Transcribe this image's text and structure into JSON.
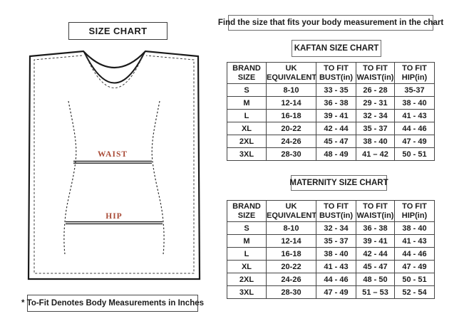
{
  "page": {
    "title_box": "SIZE CHART",
    "instruction": "Find the size that fits your body measurement in the chart",
    "footnote": "* To-Fit Denotes Body Measurements in Inches"
  },
  "diagram": {
    "waist_label": "WAIST",
    "hip_label": "HIP",
    "label_color": "#a94a36",
    "outline_color": "#1a1a1a"
  },
  "tables": [
    {
      "title": "KAFTAN SIZE CHART",
      "headers": [
        [
          "BRAND",
          "SIZE"
        ],
        [
          "UK",
          "EQUIVALENT"
        ],
        [
          "TO FIT",
          "BUST(in)"
        ],
        [
          "TO FIT",
          "WAIST(in)"
        ],
        [
          "TO FIT",
          "HIP(in)"
        ]
      ],
      "rows": [
        [
          "S",
          "8-10",
          "33 - 35",
          "26 - 28",
          "35-37"
        ],
        [
          "M",
          "12-14",
          "36 - 38",
          "29 - 31",
          "38 - 40"
        ],
        [
          "L",
          "16-18",
          "39 - 41",
          "32 - 34",
          "41 - 43"
        ],
        [
          "XL",
          "20-22",
          "42 - 44",
          "35 - 37",
          "44 - 46"
        ],
        [
          "2XL",
          "24-26",
          "45 - 47",
          "38 - 40",
          "47 - 49"
        ],
        [
          "3XL",
          "28-30",
          "48 - 49",
          "41 – 42",
          "50 - 51"
        ]
      ]
    },
    {
      "title": "MATERNITY SIZE CHART",
      "headers": [
        [
          "BRAND",
          "SIZE"
        ],
        [
          "UK",
          "EQUIVALENT"
        ],
        [
          "TO FIT",
          "BUST(in)"
        ],
        [
          "TO FIT",
          "WAIST(in)"
        ],
        [
          "TO FIT",
          "HIP(in)"
        ]
      ],
      "rows": [
        [
          "S",
          "8-10",
          "32 - 34",
          "36 - 38",
          "38 - 40"
        ],
        [
          "M",
          "12-14",
          "35 - 37",
          "39 - 41",
          "41 - 43"
        ],
        [
          "L",
          "16-18",
          "38 - 40",
          "42 - 44",
          "44 - 46"
        ],
        [
          "XL",
          "20-22",
          "41 - 43",
          "45 - 47",
          "47 - 49"
        ],
        [
          "2XL",
          "24-26",
          "44 - 46",
          "48 - 50",
          "50 - 51"
        ],
        [
          "3XL",
          "28-30",
          "47 - 49",
          "51 – 53",
          "52 - 54"
        ]
      ]
    }
  ]
}
